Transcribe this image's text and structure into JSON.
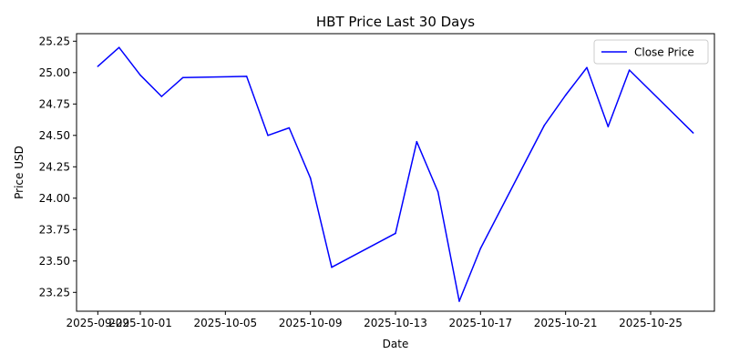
{
  "chart_data": {
    "type": "line",
    "title": "HBT Price Last 30 Days",
    "xlabel": "Date",
    "ylabel": "Price USD",
    "xlim": [
      "2025-09-28",
      "2025-10-28"
    ],
    "ylim": [
      23.1,
      25.31
    ],
    "x_ticks": [
      "2025-09-29",
      "2025-10-01",
      "2025-10-05",
      "2025-10-09",
      "2025-10-13",
      "2025-10-17",
      "2025-10-21",
      "2025-10-25"
    ],
    "y_ticks": [
      "23.25",
      "23.50",
      "23.75",
      "24.00",
      "24.25",
      "24.50",
      "24.75",
      "25.00",
      "25.25"
    ],
    "legend_position": "top-right",
    "grid": false,
    "series": [
      {
        "name": "Close Price",
        "color": "#0000ff",
        "points": [
          {
            "x": "2025-09-29",
            "y": 25.05
          },
          {
            "x": "2025-09-30",
            "y": 25.2
          },
          {
            "x": "2025-10-01",
            "y": 24.98
          },
          {
            "x": "2025-10-02",
            "y": 24.81
          },
          {
            "x": "2025-10-03",
            "y": 24.96
          },
          {
            "x": "2025-10-06",
            "y": 24.97
          },
          {
            "x": "2025-10-07",
            "y": 24.5
          },
          {
            "x": "2025-10-08",
            "y": 24.56
          },
          {
            "x": "2025-10-09",
            "y": 24.16
          },
          {
            "x": "2025-10-10",
            "y": 23.45
          },
          {
            "x": "2025-10-13",
            "y": 23.72
          },
          {
            "x": "2025-10-14",
            "y": 24.45
          },
          {
            "x": "2025-10-15",
            "y": 24.05
          },
          {
            "x": "2025-10-16",
            "y": 23.18
          },
          {
            "x": "2025-10-17",
            "y": 23.6
          },
          {
            "x": "2025-10-20",
            "y": 24.58
          },
          {
            "x": "2025-10-21",
            "y": 24.82
          },
          {
            "x": "2025-10-22",
            "y": 25.04
          },
          {
            "x": "2025-10-23",
            "y": 24.57
          },
          {
            "x": "2025-10-24",
            "y": 25.02
          },
          {
            "x": "2025-10-27",
            "y": 24.52
          }
        ]
      }
    ]
  }
}
